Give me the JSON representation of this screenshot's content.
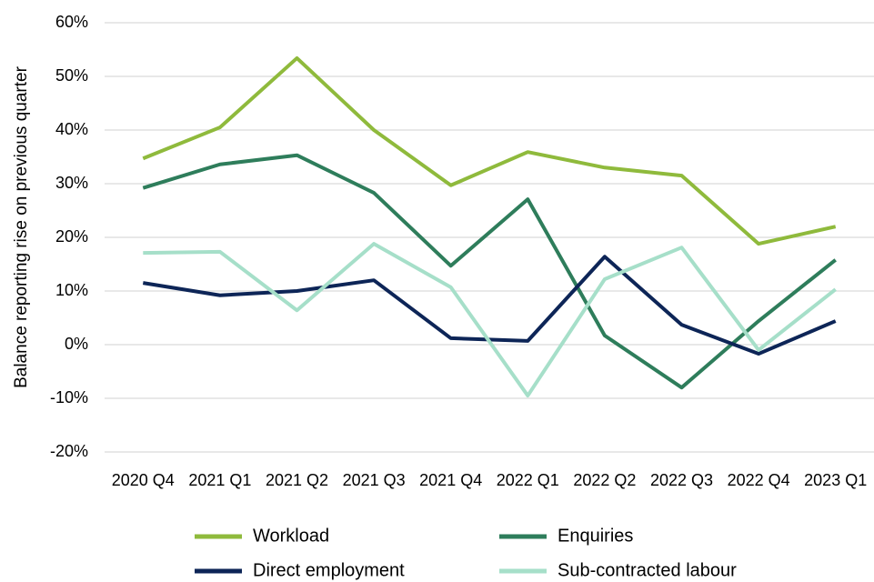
{
  "chart_data": {
    "type": "line",
    "y_axis_label": "Balance reporting rise on previous quarter",
    "categories": [
      "2020 Q4",
      "2021 Q1",
      "2021 Q2",
      "2021 Q3",
      "2021 Q4",
      "2022 Q1",
      "2022 Q2",
      "2022 Q3",
      "2022 Q4",
      "2023 Q1"
    ],
    "series": [
      {
        "name": "Workload",
        "color": "#8fba3c",
        "values": [
          34.7,
          40.5,
          53.4,
          40,
          29.7,
          35.9,
          33,
          31.5,
          18.8,
          22
        ]
      },
      {
        "name": "Enquiries",
        "color": "#2e7d5b",
        "values": [
          29.2,
          33.6,
          35.3,
          28.3,
          14.7,
          27.1,
          1.7,
          -8,
          4.4,
          15.8
        ]
      },
      {
        "name": "Direct employment",
        "color": "#0d2557",
        "values": [
          11.5,
          9.2,
          10,
          12,
          1.2,
          0.7,
          16.4,
          3.7,
          -1.7,
          4.4
        ]
      },
      {
        "name": "Sub-contracted labour",
        "color": "#a6dfc9",
        "values": [
          17.1,
          17.3,
          6.4,
          18.8,
          10.7,
          -9.5,
          12.2,
          18.1,
          -1,
          10.3
        ]
      }
    ],
    "ylim": [
      -20,
      60
    ],
    "yticks": [
      {
        "value": -20,
        "label": "-20%"
      },
      {
        "value": -10,
        "label": "-10%"
      },
      {
        "value": 0,
        "label": "0%"
      },
      {
        "value": 10,
        "label": "10%"
      },
      {
        "value": 20,
        "label": "20%"
      },
      {
        "value": 30,
        "label": "30%"
      },
      {
        "value": 40,
        "label": "40%"
      },
      {
        "value": 50,
        "label": "50%"
      },
      {
        "value": 60,
        "label": "60%"
      }
    ],
    "grid": true
  }
}
